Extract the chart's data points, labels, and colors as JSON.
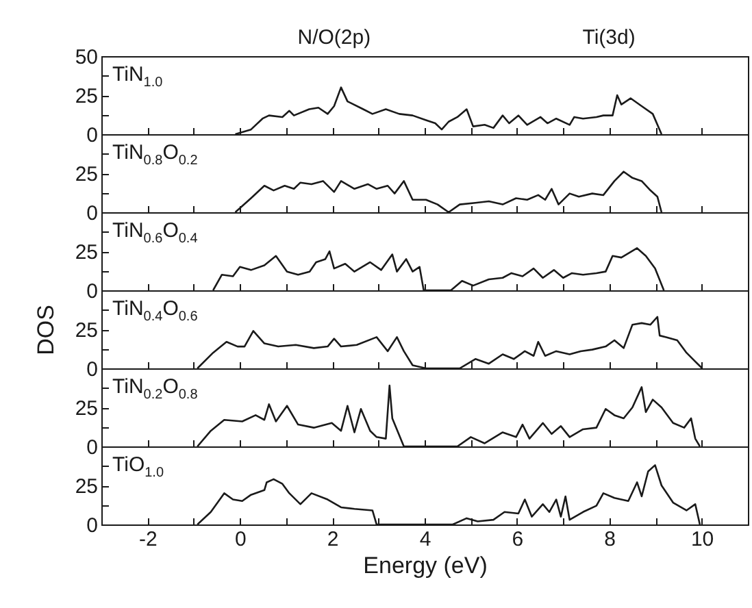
{
  "chart_data": [
    {
      "type": "line",
      "title": "TiN$_{1.0}$",
      "annotations": [
        "N/O(2p)",
        "Ti(3d)"
      ],
      "xlim": [
        -3,
        11
      ],
      "xticks": [
        -2,
        {
          "value": -1,
          "label": null
        },
        0,
        {
          "value": 1,
          "label": null
        },
        2,
        {
          "value": 3,
          "label": null
        },
        4,
        {
          "value": 5,
          "label": null
        },
        6,
        {
          "value": 7,
          "label": null
        },
        8,
        {
          "value": 9,
          "label": null
        },
        10
      ],
      "ylim": [
        0,
        50
      ],
      "yticks": [
        0,
        {
          "value": 12.5,
          "label": null
        },
        25,
        {
          "value": 37.5,
          "label": null
        },
        50
      ],
      "tick_labels": "y",
      "series": [
        {
          "color": "#1a1a1a",
          "x": [
            -0.1,
            0.24,
            0.49,
            0.63,
            0.92,
            1.07,
            1.17,
            1.5,
            1.7,
            1.9,
            2.04,
            2.19,
            2.33,
            2.67,
            2.87,
            3.16,
            3.45,
            3.74,
            4.03,
            4.23,
            4.37,
            4.52,
            4.71,
            4.91,
            5.05,
            5.3,
            5.49,
            5.69,
            5.83,
            6.03,
            6.22,
            6.51,
            6.66,
            6.85,
            7.14,
            7.24,
            7.43,
            7.72,
            7.87,
            8.07,
            8.17,
            8.26,
            8.46,
            8.7,
            8.94,
            9.13
          ],
          "values": [
            0,
            3,
            10,
            12,
            11,
            15,
            12,
            16,
            17,
            13,
            18,
            30,
            21,
            16,
            13,
            16,
            13,
            12,
            9,
            7,
            3,
            8,
            11,
            16,
            5,
            6,
            4,
            12,
            7,
            12,
            6,
            11,
            7,
            10,
            6,
            11,
            10,
            11,
            12,
            12,
            25,
            19,
            23,
            18,
            13,
            0
          ]
        }
      ]
    },
    {
      "type": "line",
      "title": "TiN$_{0.8}$O$_{0.2}$",
      "xlim": [
        -3,
        11
      ],
      "xticks": [
        -2,
        {
          "value": -1,
          "label": null
        },
        0,
        {
          "value": 1,
          "label": null
        },
        2,
        {
          "value": 3,
          "label": null
        },
        4,
        {
          "value": 5,
          "label": null
        },
        6,
        {
          "value": 7,
          "label": null
        },
        8,
        {
          "value": 9,
          "label": null
        },
        10
      ],
      "ylim": [
        0,
        50
      ],
      "yticks": [
        0,
        {
          "value": 12.5,
          "label": null
        },
        25,
        {
          "value": 37.5,
          "label": null
        },
        {
          "value": 50,
          "label": null
        }
      ],
      "tick_labels": "y",
      "series": [
        {
          "color": "#1a1a1a",
          "x": [
            -0.1,
            0.24,
            0.53,
            0.73,
            0.97,
            1.17,
            1.31,
            1.55,
            1.8,
            2.04,
            2.19,
            2.48,
            2.77,
            2.96,
            3.2,
            3.35,
            3.55,
            3.74,
            4.03,
            4.28,
            4.52,
            4.76,
            5.1,
            5.39,
            5.69,
            5.98,
            6.22,
            6.46,
            6.61,
            6.75,
            6.9,
            7.14,
            7.34,
            7.63,
            7.87,
            8.11,
            8.31,
            8.5,
            8.7,
            8.89,
            9.04,
            9.13
          ],
          "values": [
            0,
            9,
            17,
            14,
            17,
            15,
            19,
            18,
            20,
            13,
            20,
            15,
            18,
            15,
            17,
            12,
            20,
            8,
            8,
            5,
            0,
            5,
            6,
            7,
            5,
            9,
            8,
            11,
            8,
            15,
            5,
            12,
            10,
            12,
            11,
            20,
            26,
            22,
            20,
            14,
            10,
            0
          ]
        }
      ]
    },
    {
      "type": "line",
      "title": "TiN$_{0.6}$O$_{0.4}$",
      "xlim": [
        -3,
        11
      ],
      "xticks": [
        -2,
        {
          "value": -1,
          "label": null
        },
        0,
        {
          "value": 1,
          "label": null
        },
        2,
        {
          "value": 3,
          "label": null
        },
        4,
        {
          "value": 5,
          "label": null
        },
        6,
        {
          "value": 7,
          "label": null
        },
        8,
        {
          "value": 9,
          "label": null
        },
        10
      ],
      "ylim": [
        0,
        50
      ],
      "yticks": [
        0,
        {
          "value": 12.5,
          "label": null
        },
        25,
        {
          "value": 37.5,
          "label": null
        },
        {
          "value": 50,
          "label": null
        }
      ],
      "tick_labels": "y",
      "series": [
        {
          "color": "#1a1a1a",
          "x": [
            -0.58,
            -0.39,
            -0.15,
            0,
            0.24,
            0.53,
            0.78,
            1.02,
            1.26,
            1.51,
            1.65,
            1.85,
            1.94,
            2.04,
            2.28,
            2.48,
            2.82,
            3.06,
            3.3,
            3.4,
            3.6,
            3.74,
            3.89,
            3.98,
            4.57,
            4.81,
            5.05,
            5.39,
            5.69,
            5.88,
            6.12,
            6.36,
            6.56,
            6.8,
            7,
            7.19,
            7.43,
            7.72,
            7.92,
            8.07,
            8.26,
            8.6,
            8.79,
            8.99,
            9.18
          ],
          "values": [
            0,
            10,
            9,
            15,
            13,
            16,
            22,
            12,
            10,
            12,
            18,
            20,
            25,
            14,
            17,
            12,
            18,
            13,
            23,
            12,
            20,
            12,
            15,
            0,
            0,
            6,
            3,
            7,
            8,
            11,
            9,
            14,
            8,
            13,
            8,
            11,
            10,
            11,
            12,
            22,
            21,
            27,
            22,
            14,
            0
          ]
        }
      ]
    },
    {
      "type": "line",
      "title": "TiN$_{0.4}$O$_{0.6}$",
      "ylabel": "DOS",
      "xlim": [
        -3,
        11
      ],
      "xticks": [
        -2,
        {
          "value": -1,
          "label": null
        },
        0,
        {
          "value": 1,
          "label": null
        },
        2,
        {
          "value": 3,
          "label": null
        },
        4,
        {
          "value": 5,
          "label": null
        },
        6,
        {
          "value": 7,
          "label": null
        },
        8,
        {
          "value": 9,
          "label": null
        },
        10
      ],
      "ylim": [
        0,
        50
      ],
      "yticks": [
        0,
        {
          "value": 12.5,
          "label": null
        },
        25,
        {
          "value": 37.5,
          "label": null
        },
        {
          "value": 50,
          "label": null
        }
      ],
      "tick_labels": "y",
      "series": [
        {
          "color": "#1a1a1a",
          "x": [
            -0.92,
            -0.58,
            -0.29,
            -0.05,
            0.1,
            0.29,
            0.53,
            0.83,
            1.21,
            1.6,
            1.9,
            2.04,
            2.19,
            2.53,
            2.96,
            3.2,
            3.4,
            3.55,
            3.74,
            4.03,
            4.76,
            5.1,
            5.39,
            5.69,
            5.93,
            6.17,
            6.36,
            6.46,
            6.61,
            6.85,
            7.14,
            7.38,
            7.63,
            7.92,
            8.11,
            8.31,
            8.5,
            8.7,
            8.89,
            9.04,
            9.09,
            9.23,
            9.47,
            9.67,
            10.01
          ],
          "values": [
            0,
            10,
            17,
            14,
            14,
            24,
            16,
            14,
            15,
            13,
            14,
            19,
            14,
            15,
            20,
            11,
            20,
            11,
            2,
            0,
            0,
            6,
            3,
            9,
            6,
            11,
            8,
            17,
            8,
            11,
            9,
            11,
            12,
            14,
            18,
            13,
            28,
            29,
            28,
            33,
            21,
            20,
            18,
            10,
            0
          ]
        }
      ]
    },
    {
      "type": "line",
      "title": "TiN$_{0.2}$O$_{0.8}$",
      "xlim": [
        -3,
        11
      ],
      "xticks": [
        -2,
        {
          "value": -1,
          "label": null
        },
        0,
        {
          "value": 1,
          "label": null
        },
        2,
        {
          "value": 3,
          "label": null
        },
        4,
        {
          "value": 5,
          "label": null
        },
        6,
        {
          "value": 7,
          "label": null
        },
        8,
        {
          "value": 9,
          "label": null
        },
        10
      ],
      "ylim": [
        0,
        50
      ],
      "yticks": [
        0,
        {
          "value": 12.5,
          "label": null
        },
        25,
        {
          "value": 37.5,
          "label": null
        },
        {
          "value": 50,
          "label": null
        }
      ],
      "tick_labels": "y",
      "series": [
        {
          "color": "#1a1a1a",
          "x": [
            -0.92,
            -0.63,
            -0.34,
            0.05,
            0.34,
            0.53,
            0.63,
            0.78,
            1.02,
            1.26,
            1.6,
            1.99,
            2.19,
            2.33,
            2.48,
            2.62,
            2.82,
            2.96,
            3.16,
            3.24,
            3.3,
            3.55,
            4.71,
            5,
            5.3,
            5.69,
            5.98,
            6.12,
            6.27,
            6.56,
            6.75,
            6.95,
            7.14,
            7.43,
            7.72,
            7.92,
            8.11,
            8.31,
            8.5,
            8.7,
            8.79,
            8.94,
            9.13,
            9.38,
            9.62,
            9.77,
            9.86,
            9.96
          ],
          "values": [
            0,
            10,
            17,
            16,
            20,
            17,
            27,
            16,
            26,
            14,
            12,
            15,
            10,
            26,
            9,
            24,
            10,
            6,
            5,
            39,
            18,
            0,
            0,
            6,
            2,
            9,
            6,
            14,
            5,
            15,
            8,
            13,
            6,
            11,
            12,
            24,
            20,
            18,
            25,
            38,
            22,
            30,
            25,
            15,
            12,
            18,
            5,
            0
          ]
        }
      ]
    },
    {
      "type": "line",
      "title": "TiO$_{1.0}$",
      "xlabel": "Energy (eV)",
      "xlim": [
        -3,
        11
      ],
      "xticks": [
        -2,
        {
          "value": -1,
          "label": null
        },
        0,
        {
          "value": 1,
          "label": null
        },
        2,
        {
          "value": 3,
          "label": null
        },
        4,
        {
          "value": 5,
          "label": null
        },
        6,
        {
          "value": 7,
          "label": null
        },
        8,
        {
          "value": 9,
          "label": null
        },
        10
      ],
      "ylim": [
        0,
        50
      ],
      "yticks": [
        0,
        {
          "value": 12.5,
          "label": null
        },
        25,
        {
          "value": 37.5,
          "label": null
        },
        {
          "value": 50,
          "label": null
        }
      ],
      "series": [
        {
          "color": "#1a1a1a",
          "x": [
            -0.92,
            -0.63,
            -0.34,
            -0.15,
            0.05,
            0.24,
            0.53,
            0.58,
            0.73,
            0.92,
            1.07,
            1.31,
            1.55,
            1.9,
            2.19,
            2.48,
            2.87,
            2.96,
            4.61,
            4.91,
            5.15,
            5.49,
            5.73,
            6.03,
            6.17,
            6.32,
            6.56,
            6.7,
            6.85,
            6.95,
            7.05,
            7.14,
            7.43,
            7.72,
            7.87,
            8.11,
            8.41,
            8.6,
            8.7,
            8.84,
            8.99,
            9.13,
            9.38,
            9.67,
            9.86,
            9.96
          ],
          "values": [
            0,
            8,
            20,
            16,
            15,
            19,
            22,
            27,
            29,
            26,
            20,
            13,
            20,
            16,
            11,
            10,
            9,
            0,
            0,
            4,
            2,
            3,
            8,
            7,
            16,
            5,
            13,
            8,
            16,
            5,
            18,
            3,
            8,
            12,
            20,
            17,
            15,
            27,
            18,
            34,
            38,
            25,
            14,
            9,
            13,
            0
          ]
        }
      ]
    }
  ]
}
